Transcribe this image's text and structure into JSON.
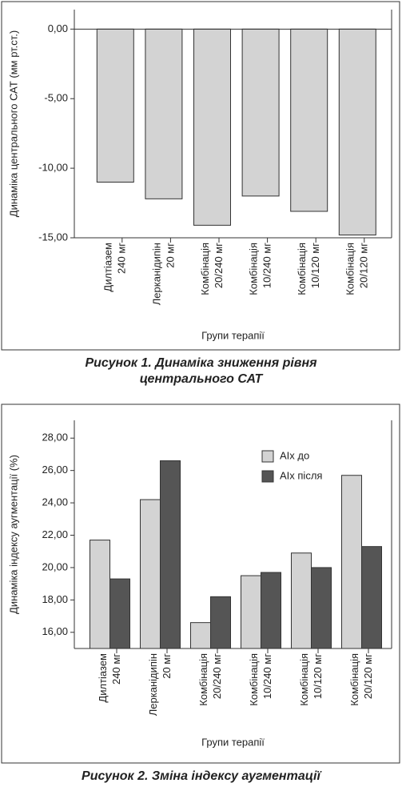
{
  "chart_data": [
    {
      "type": "bar",
      "y_label": "Динаміка центрального САТ (мм рт.ст.)",
      "x_label": "Групи терапії",
      "caption": "Рисунок 1. Динаміка зниження рівня центрального САТ",
      "categories": [
        [
          "Дилтіазем",
          "240 мг"
        ],
        [
          "Лерканідипін",
          "20 мг"
        ],
        [
          "Комбінація",
          "20/240 мг"
        ],
        [
          "Комбінація",
          "10/240 мг"
        ],
        [
          "Комбінація",
          "10/120 мг"
        ],
        [
          "Комбінація",
          "20/120 мг"
        ]
      ],
      "values": [
        -11.0,
        -12.2,
        -14.1,
        -12.0,
        -13.1,
        -14.8
      ],
      "color": "#d3d3d3",
      "ylim": [
        -15,
        1.4
      ],
      "yticks": [
        {
          "value": 0,
          "label": "0,00"
        },
        {
          "value": -5,
          "label": "-5,00"
        },
        {
          "value": -10,
          "label": "-10,00"
        },
        {
          "value": -15,
          "label": "-15,00"
        }
      ]
    },
    {
      "type": "grouped_bar",
      "y_label": "Динаміка індексу аугментації (%)",
      "x_label": "Групи терапії",
      "caption": "Рисунок 2. Зміна індексу аугментації",
      "categories": [
        [
          "Дилтіазем",
          "240 мг"
        ],
        [
          "Лерканідипін",
          "20 мг"
        ],
        [
          "Комбінація",
          "20/240 мг"
        ],
        [
          "Комбінація",
          "10/240 мг"
        ],
        [
          "Комбінація",
          "10/120 мг"
        ],
        [
          "Комбінація",
          "20/120 мг"
        ]
      ],
      "series": [
        {
          "name": "AIx до",
          "color": "#d3d3d3",
          "values": [
            21.7,
            24.2,
            16.6,
            19.5,
            20.9,
            25.7
          ]
        },
        {
          "name": "AIx після",
          "color": "#555555",
          "values": [
            19.3,
            26.6,
            18.2,
            19.7,
            20.0,
            21.3
          ]
        }
      ],
      "legend": "upper right",
      "ylim": [
        15,
        29.1
      ],
      "yticks": [
        {
          "value": 16,
          "label": "16,00"
        },
        {
          "value": 18,
          "label": "18,00"
        },
        {
          "value": 20,
          "label": "20,00"
        },
        {
          "value": 22,
          "label": "22,00"
        },
        {
          "value": 24,
          "label": "24,00"
        },
        {
          "value": 26,
          "label": "26,00"
        },
        {
          "value": 28,
          "label": "28,00"
        }
      ]
    }
  ]
}
